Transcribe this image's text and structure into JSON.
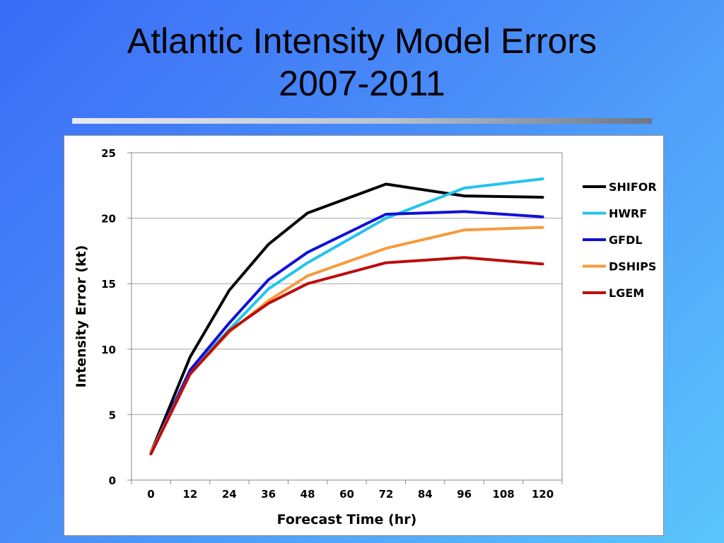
{
  "slide": {
    "title_line1": "Atlantic Intensity Model Errors",
    "title_line2": "2007-2011"
  },
  "chart_data": {
    "type": "line",
    "title": "",
    "xlabel": "Forecast Time (hr)",
    "ylabel": "Intensity Error (kt)",
    "x": [
      0,
      12,
      24,
      36,
      48,
      60,
      72,
      84,
      96,
      108,
      120
    ],
    "xticks": [
      "0",
      "12",
      "24",
      "36",
      "48",
      "60",
      "72",
      "84",
      "96",
      "108",
      "120"
    ],
    "yticks": [
      "0",
      "5",
      "10",
      "15",
      "20",
      "25"
    ],
    "ylim": [
      0,
      25
    ],
    "grid": "horizontal",
    "legend_position": "right",
    "series": [
      {
        "name": "SHIFOR",
        "color": "#000000",
        "x": [
          0,
          12,
          24,
          36,
          48,
          72,
          96,
          120
        ],
        "values": [
          2.1,
          9.4,
          14.5,
          18.0,
          20.4,
          22.6,
          21.7,
          21.6
        ]
      },
      {
        "name": "HWRF",
        "color": "#22c4ee",
        "x": [
          0,
          12,
          24,
          36,
          48,
          72,
          96,
          120
        ],
        "values": [
          2.1,
          8.3,
          11.5,
          14.6,
          16.6,
          20.0,
          22.3,
          23.0
        ]
      },
      {
        "name": "GFDL",
        "color": "#1010d8",
        "x": [
          0,
          12,
          24,
          36,
          48,
          72,
          96,
          120
        ],
        "values": [
          2.1,
          8.4,
          12.0,
          15.3,
          17.4,
          20.3,
          20.5,
          20.1
        ]
      },
      {
        "name": "DSHIPS",
        "color": "#f79a3c",
        "x": [
          0,
          12,
          24,
          36,
          48,
          72,
          96,
          120
        ],
        "values": [
          2.1,
          8.1,
          11.3,
          13.7,
          15.6,
          17.7,
          19.1,
          19.3
        ]
      },
      {
        "name": "LGEM",
        "color": "#bb0d0d",
        "x": [
          0,
          12,
          24,
          36,
          48,
          72,
          96,
          120
        ],
        "values": [
          2.0,
          8.1,
          11.4,
          13.5,
          15.0,
          16.6,
          17.0,
          16.5
        ]
      }
    ]
  }
}
